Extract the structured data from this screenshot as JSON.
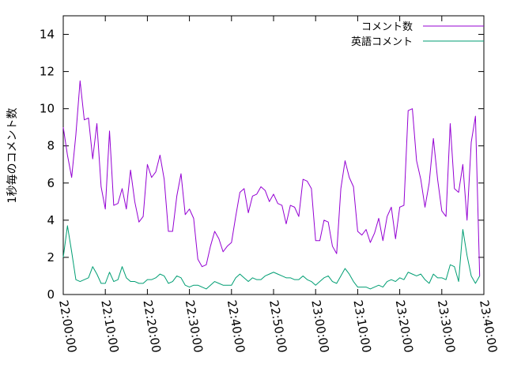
{
  "chart_data": {
    "type": "line",
    "title": "",
    "xlabel": "",
    "ylabel": "1秒毎のコメント数",
    "xlim": [
      "22:00:00",
      "23:40:00"
    ],
    "ylim": [
      0,
      15
    ],
    "x_ticks": [
      "22:00:00",
      "22:10:00",
      "22:20:00",
      "22:30:00",
      "22:40:00",
      "22:50:00",
      "23:00:00",
      "23:10:00",
      "23:20:00",
      "23:30:00",
      "23:40:00"
    ],
    "y_ticks": [
      "0",
      "2",
      "4",
      "6",
      "8",
      "10",
      "12",
      "14"
    ],
    "grid": false,
    "legend_position": "top-right",
    "x_start": "22:00:00",
    "x_step_seconds": 60,
    "series": [
      {
        "name": "コメント数",
        "color": "#9400d3",
        "values": [
          9.0,
          7.5,
          6.3,
          8.6,
          11.5,
          9.4,
          9.5,
          7.3,
          9.2,
          5.8,
          4.6,
          8.8,
          4.8,
          4.9,
          5.7,
          4.6,
          6.7,
          5.0,
          3.9,
          4.2,
          7.0,
          6.3,
          6.6,
          7.5,
          6.2,
          3.4,
          3.4,
          5.3,
          6.5,
          4.3,
          4.6,
          4.1,
          1.9,
          1.5,
          1.6,
          2.6,
          3.4,
          3.0,
          2.3,
          2.6,
          2.8,
          4.2,
          5.5,
          5.7,
          4.4,
          5.3,
          5.4,
          5.8,
          5.6,
          5.0,
          5.4,
          4.9,
          4.8,
          3.8,
          4.8,
          4.7,
          4.2,
          6.2,
          6.1,
          5.7,
          2.9,
          2.9,
          4.0,
          3.9,
          2.6,
          2.2,
          5.7,
          7.2,
          6.3,
          5.8,
          3.4,
          3.2,
          3.5,
          2.8,
          3.3,
          4.1,
          2.9,
          4.2,
          4.7,
          3.0,
          4.7,
          4.8,
          9.9,
          10.0,
          7.2,
          6.2,
          4.7,
          6.0,
          8.4,
          6.2,
          4.5,
          4.2,
          9.2,
          5.7,
          5.5,
          7.0,
          4.0,
          8.2,
          9.6,
          1.0
        ]
      },
      {
        "name": "英語コメント",
        "color": "#009e73",
        "values": [
          2.0,
          3.7,
          2.3,
          0.8,
          0.7,
          0.8,
          0.9,
          1.5,
          1.1,
          0.6,
          0.6,
          1.2,
          0.7,
          0.8,
          1.5,
          0.9,
          0.7,
          0.7,
          0.6,
          0.6,
          0.8,
          0.8,
          0.9,
          1.1,
          1.0,
          0.6,
          0.7,
          1.0,
          0.9,
          0.5,
          0.4,
          0.5,
          0.5,
          0.4,
          0.3,
          0.5,
          0.7,
          0.6,
          0.5,
          0.5,
          0.5,
          0.9,
          1.1,
          0.9,
          0.7,
          0.9,
          0.8,
          0.8,
          1.0,
          1.1,
          1.2,
          1.1,
          1.0,
          0.9,
          0.9,
          0.8,
          0.8,
          1.0,
          0.8,
          0.7,
          0.5,
          0.7,
          0.9,
          1.0,
          0.7,
          0.6,
          1.0,
          1.4,
          1.1,
          0.7,
          0.4,
          0.4,
          0.4,
          0.3,
          0.4,
          0.5,
          0.4,
          0.7,
          0.8,
          0.7,
          0.9,
          0.8,
          1.2,
          1.1,
          1.0,
          1.1,
          0.8,
          0.6,
          1.1,
          0.9,
          0.9,
          0.8,
          1.6,
          1.5,
          0.7,
          3.5,
          2.1,
          1.0,
          0.6,
          1.0
        ]
      }
    ]
  }
}
